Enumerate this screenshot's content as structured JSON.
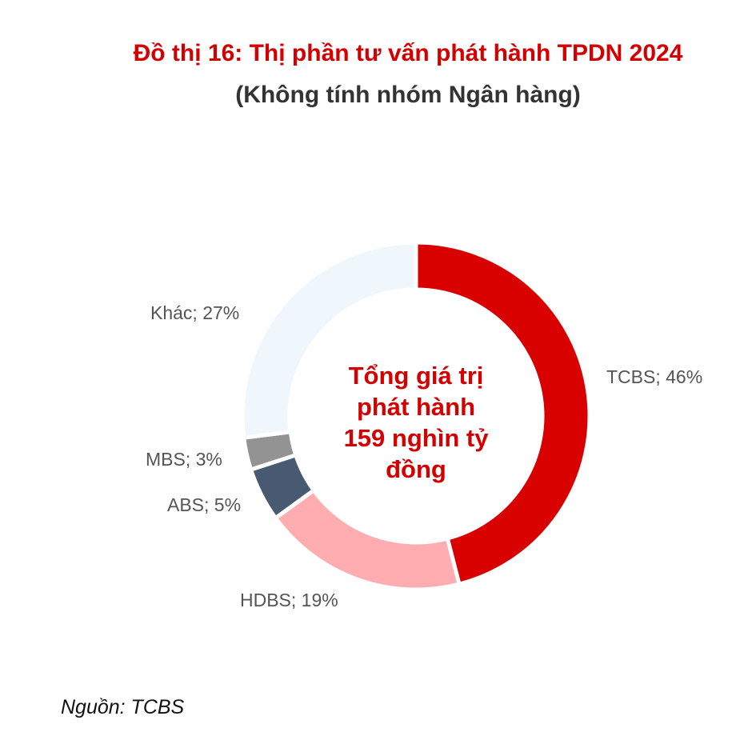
{
  "chart_data": {
    "type": "pie",
    "variant": "donut",
    "title": "Đồ thị 16: Thị phần tư vấn phát hành TPDN 2024",
    "subtitle": "(Không tính nhóm Ngân hàng)",
    "center_text": [
      "Tổng giá trị",
      "phát hành",
      "159 nghìn tỷ",
      "đồng"
    ],
    "slices": [
      {
        "label": "TCBS; 46%",
        "name": "TCBS",
        "value": 46,
        "color": "#d90000"
      },
      {
        "label": "HDBS; 19%",
        "name": "HDBS",
        "value": 19,
        "color": "#ffadb0"
      },
      {
        "label": "ABS; 5%",
        "name": "ABS",
        "value": 5,
        "color": "#475a72"
      },
      {
        "label": "MBS; 3%",
        "name": "MBS",
        "value": 3,
        "color": "#939393"
      },
      {
        "label": "Khác; 27%",
        "name": "Khác",
        "value": 27,
        "color": "#f0f7fc"
      }
    ],
    "source": "Nguồn: TCBS"
  }
}
